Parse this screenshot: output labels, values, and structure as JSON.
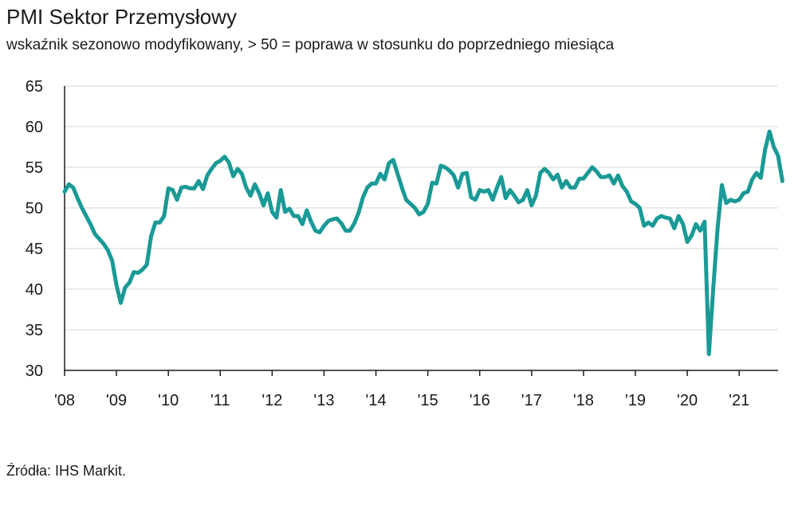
{
  "title": "PMI Sektor Przemysłowy",
  "subtitle": "wskaźnik sezonowo modyfikowany, > 50 = poprawa w stosunku do poprzedniego miesiąca",
  "source": "Źródła: IHS Markit.",
  "colors": {
    "line": "#1a9a96",
    "grid": "#d6d6d6",
    "axis": "#1a1a1a"
  },
  "chart_data": {
    "type": "line",
    "title": "PMI Sektor Przemysłowy",
    "subtitle": "wskaźnik sezonowo modyfikowany, > 50 = poprawa w stosunku do poprzedniego miesiąca",
    "xlabel": "",
    "ylabel": "",
    "ylim": [
      30,
      65
    ],
    "yticks": [
      30,
      35,
      40,
      45,
      50,
      55,
      60,
      65
    ],
    "xticks": [
      "'08",
      "'09",
      "'10",
      "'11",
      "'12",
      "'13",
      "'14",
      "'15",
      "'16",
      "'17",
      "'18",
      "'19",
      "'20",
      "'21"
    ],
    "xrange": [
      "2008-01",
      "2021-09"
    ],
    "grid": true,
    "series": [
      {
        "values": [
          {
            "x": "2008-01",
            "y": 52.0
          },
          {
            "x": "2008-02",
            "y": 52.9
          },
          {
            "x": "2008-03",
            "y": 52.5
          },
          {
            "x": "2008-04",
            "y": 51.2
          },
          {
            "x": "2008-05",
            "y": 50.0
          },
          {
            "x": "2008-06",
            "y": 49.0
          },
          {
            "x": "2008-07",
            "y": 48.0
          },
          {
            "x": "2008-08",
            "y": 46.8
          },
          {
            "x": "2008-09",
            "y": 46.2
          },
          {
            "x": "2008-10",
            "y": 45.6
          },
          {
            "x": "2008-11",
            "y": 44.8
          },
          {
            "x": "2008-12",
            "y": 43.5
          },
          {
            "x": "2009-01",
            "y": 40.5
          },
          {
            "x": "2009-02",
            "y": 38.3
          },
          {
            "x": "2009-03",
            "y": 40.2
          },
          {
            "x": "2009-04",
            "y": 40.8
          },
          {
            "x": "2009-05",
            "y": 42.1
          },
          {
            "x": "2009-06",
            "y": 42.0
          },
          {
            "x": "2009-07",
            "y": 42.4
          },
          {
            "x": "2009-08",
            "y": 43.0
          },
          {
            "x": "2009-09",
            "y": 46.5
          },
          {
            "x": "2009-10",
            "y": 48.2
          },
          {
            "x": "2009-11",
            "y": 48.2
          },
          {
            "x": "2009-12",
            "y": 49.0
          },
          {
            "x": "2010-01",
            "y": 52.4
          },
          {
            "x": "2010-02",
            "y": 52.2
          },
          {
            "x": "2010-03",
            "y": 51.0
          },
          {
            "x": "2010-04",
            "y": 52.5
          },
          {
            "x": "2010-05",
            "y": 52.6
          },
          {
            "x": "2010-06",
            "y": 52.4
          },
          {
            "x": "2010-07",
            "y": 52.4
          },
          {
            "x": "2010-08",
            "y": 53.3
          },
          {
            "x": "2010-09",
            "y": 52.3
          },
          {
            "x": "2010-10",
            "y": 54.0
          },
          {
            "x": "2010-11",
            "y": 54.8
          },
          {
            "x": "2010-12",
            "y": 55.5
          },
          {
            "x": "2011-01",
            "y": 55.8
          },
          {
            "x": "2011-02",
            "y": 56.3
          },
          {
            "x": "2011-03",
            "y": 55.6
          },
          {
            "x": "2011-04",
            "y": 53.9
          },
          {
            "x": "2011-05",
            "y": 54.8
          },
          {
            "x": "2011-06",
            "y": 54.2
          },
          {
            "x": "2011-07",
            "y": 52.5
          },
          {
            "x": "2011-08",
            "y": 51.5
          },
          {
            "x": "2011-09",
            "y": 52.9
          },
          {
            "x": "2011-10",
            "y": 51.8
          },
          {
            "x": "2011-11",
            "y": 50.3
          },
          {
            "x": "2011-12",
            "y": 51.8
          },
          {
            "x": "2012-01",
            "y": 49.5
          },
          {
            "x": "2012-02",
            "y": 48.8
          },
          {
            "x": "2012-03",
            "y": 52.2
          },
          {
            "x": "2012-04",
            "y": 49.5
          },
          {
            "x": "2012-05",
            "y": 49.9
          },
          {
            "x": "2012-06",
            "y": 49.0
          },
          {
            "x": "2012-07",
            "y": 49.0
          },
          {
            "x": "2012-08",
            "y": 48.0
          },
          {
            "x": "2012-09",
            "y": 49.7
          },
          {
            "x": "2012-10",
            "y": 48.3
          },
          {
            "x": "2012-11",
            "y": 47.2
          },
          {
            "x": "2012-12",
            "y": 47.0
          },
          {
            "x": "2013-01",
            "y": 47.8
          },
          {
            "x": "2013-02",
            "y": 48.4
          },
          {
            "x": "2013-03",
            "y": 48.6
          },
          {
            "x": "2013-04",
            "y": 48.7
          },
          {
            "x": "2013-05",
            "y": 48.1
          },
          {
            "x": "2013-06",
            "y": 47.2
          },
          {
            "x": "2013-07",
            "y": 47.2
          },
          {
            "x": "2013-08",
            "y": 48.1
          },
          {
            "x": "2013-09",
            "y": 49.4
          },
          {
            "x": "2013-10",
            "y": 51.3
          },
          {
            "x": "2013-11",
            "y": 52.5
          },
          {
            "x": "2013-12",
            "y": 53.0
          },
          {
            "x": "2014-01",
            "y": 53.0
          },
          {
            "x": "2014-02",
            "y": 54.2
          },
          {
            "x": "2014-03",
            "y": 53.5
          },
          {
            "x": "2014-04",
            "y": 55.5
          },
          {
            "x": "2014-05",
            "y": 55.9
          },
          {
            "x": "2014-06",
            "y": 54.2
          },
          {
            "x": "2014-07",
            "y": 52.5
          },
          {
            "x": "2014-08",
            "y": 51.0
          },
          {
            "x": "2014-09",
            "y": 50.5
          },
          {
            "x": "2014-10",
            "y": 50.0
          },
          {
            "x": "2014-11",
            "y": 49.2
          },
          {
            "x": "2014-12",
            "y": 49.5
          },
          {
            "x": "2015-01",
            "y": 50.5
          },
          {
            "x": "2015-02",
            "y": 53.1
          },
          {
            "x": "2015-03",
            "y": 53.0
          },
          {
            "x": "2015-04",
            "y": 55.2
          },
          {
            "x": "2015-05",
            "y": 55.0
          },
          {
            "x": "2015-06",
            "y": 54.6
          },
          {
            "x": "2015-07",
            "y": 54.0
          },
          {
            "x": "2015-08",
            "y": 52.5
          },
          {
            "x": "2015-09",
            "y": 54.2
          },
          {
            "x": "2015-10",
            "y": 54.3
          },
          {
            "x": "2015-11",
            "y": 51.3
          },
          {
            "x": "2015-12",
            "y": 51.0
          },
          {
            "x": "2016-01",
            "y": 52.2
          },
          {
            "x": "2016-02",
            "y": 52.0
          },
          {
            "x": "2016-03",
            "y": 52.2
          },
          {
            "x": "2016-04",
            "y": 51.0
          },
          {
            "x": "2016-05",
            "y": 52.5
          },
          {
            "x": "2016-06",
            "y": 53.8
          },
          {
            "x": "2016-07",
            "y": 51.2
          },
          {
            "x": "2016-08",
            "y": 52.2
          },
          {
            "x": "2016-09",
            "y": 51.5
          },
          {
            "x": "2016-10",
            "y": 50.7
          },
          {
            "x": "2016-11",
            "y": 51.0
          },
          {
            "x": "2016-12",
            "y": 52.2
          },
          {
            "x": "2017-01",
            "y": 50.3
          },
          {
            "x": "2017-02",
            "y": 51.5
          },
          {
            "x": "2017-03",
            "y": 54.3
          },
          {
            "x": "2017-04",
            "y": 54.8
          },
          {
            "x": "2017-05",
            "y": 54.3
          },
          {
            "x": "2017-06",
            "y": 53.5
          },
          {
            "x": "2017-07",
            "y": 54.1
          },
          {
            "x": "2017-08",
            "y": 52.5
          },
          {
            "x": "2017-09",
            "y": 53.3
          },
          {
            "x": "2017-10",
            "y": 52.5
          },
          {
            "x": "2017-11",
            "y": 52.5
          },
          {
            "x": "2017-12",
            "y": 53.6
          },
          {
            "x": "2018-01",
            "y": 53.6
          },
          {
            "x": "2018-02",
            "y": 54.3
          },
          {
            "x": "2018-03",
            "y": 55.0
          },
          {
            "x": "2018-04",
            "y": 54.5
          },
          {
            "x": "2018-05",
            "y": 53.8
          },
          {
            "x": "2018-06",
            "y": 53.8
          },
          {
            "x": "2018-07",
            "y": 54.0
          },
          {
            "x": "2018-08",
            "y": 53.0
          },
          {
            "x": "2018-09",
            "y": 54.0
          },
          {
            "x": "2018-10",
            "y": 52.7
          },
          {
            "x": "2018-11",
            "y": 52.0
          },
          {
            "x": "2018-12",
            "y": 50.8
          },
          {
            "x": "2019-01",
            "y": 50.5
          },
          {
            "x": "2019-02",
            "y": 50.0
          },
          {
            "x": "2019-03",
            "y": 47.8
          },
          {
            "x": "2019-04",
            "y": 48.2
          },
          {
            "x": "2019-05",
            "y": 47.8
          },
          {
            "x": "2019-06",
            "y": 48.7
          },
          {
            "x": "2019-07",
            "y": 49.0
          },
          {
            "x": "2019-08",
            "y": 48.8
          },
          {
            "x": "2019-09",
            "y": 48.7
          },
          {
            "x": "2019-10",
            "y": 47.5
          },
          {
            "x": "2019-11",
            "y": 49.0
          },
          {
            "x": "2019-12",
            "y": 48.0
          },
          {
            "x": "2020-01",
            "y": 45.8
          },
          {
            "x": "2020-02",
            "y": 46.6
          },
          {
            "x": "2020-03",
            "y": 48.0
          },
          {
            "x": "2020-04",
            "y": 47.2
          },
          {
            "x": "2020-05",
            "y": 48.3
          },
          {
            "x": "2020-06",
            "y": 32.0
          },
          {
            "x": "2020-07",
            "y": 40.0
          },
          {
            "x": "2020-08",
            "y": 47.5
          },
          {
            "x": "2020-09",
            "y": 52.8
          },
          {
            "x": "2020-10",
            "y": 50.6
          },
          {
            "x": "2020-11",
            "y": 51.0
          },
          {
            "x": "2020-12",
            "y": 50.8
          },
          {
            "x": "2021-01",
            "y": 51.0
          },
          {
            "x": "2021-02",
            "y": 51.8
          },
          {
            "x": "2021-03",
            "y": 52.0
          },
          {
            "x": "2021-04",
            "y": 53.5
          },
          {
            "x": "2021-05",
            "y": 54.3
          },
          {
            "x": "2021-06",
            "y": 53.7
          },
          {
            "x": "2021-07",
            "y": 57.2
          },
          {
            "x": "2021-08",
            "y": 59.4
          },
          {
            "x": "2021-09",
            "y": 57.5
          },
          {
            "x": "2021-10",
            "y": 56.4
          },
          {
            "x": "2021-11",
            "y": 53.3
          }
        ]
      }
    ]
  }
}
